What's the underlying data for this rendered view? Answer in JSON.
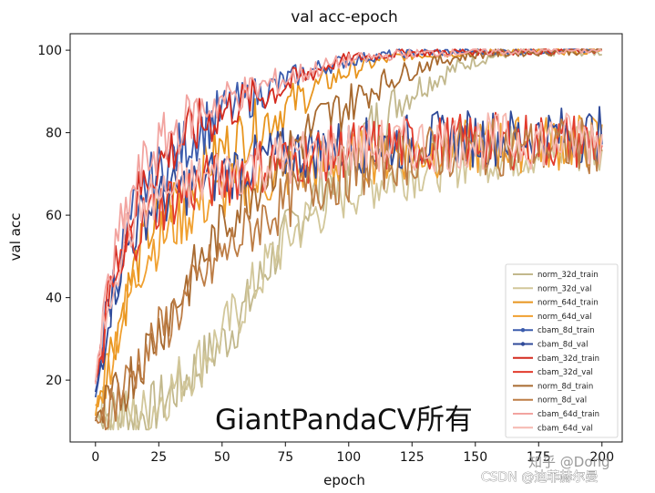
{
  "chart_data": {
    "type": "line",
    "title": "val acc-epoch",
    "xlabel": "epoch",
    "ylabel": "val acc",
    "xlim": [
      -10,
      208
    ],
    "ylim": [
      5,
      104
    ],
    "xticks": [
      0,
      25,
      50,
      75,
      100,
      125,
      150,
      175,
      200
    ],
    "yticks": [
      20,
      40,
      60,
      80,
      100
    ],
    "grid": false,
    "legend_position": "lower-right",
    "series": [
      {
        "name": "norm_32d_train",
        "color": "#c2b88c",
        "marker": false,
        "points": [
          [
            0,
            12
          ],
          [
            10,
            11.5
          ],
          [
            20,
            11.5
          ],
          [
            30,
            17
          ],
          [
            40,
            23
          ],
          [
            50,
            29
          ],
          [
            60,
            38
          ],
          [
            70,
            50
          ],
          [
            80,
            59
          ],
          [
            90,
            68
          ],
          [
            100,
            75
          ],
          [
            110,
            82
          ],
          [
            120,
            88
          ],
          [
            130,
            92
          ],
          [
            140,
            95
          ],
          [
            150,
            97.5
          ],
          [
            160,
            99
          ],
          [
            175,
            99.5
          ],
          [
            200,
            99.5
          ]
        ]
      },
      {
        "name": "norm_32d_val",
        "color": "#d2c79a",
        "marker": false,
        "points": [
          [
            0,
            12
          ],
          [
            10,
            11.5
          ],
          [
            20,
            12
          ],
          [
            30,
            18
          ],
          [
            40,
            24
          ],
          [
            50,
            31
          ],
          [
            60,
            40
          ],
          [
            70,
            50
          ],
          [
            80,
            57
          ],
          [
            90,
            62
          ],
          [
            100,
            66
          ],
          [
            110,
            68
          ],
          [
            120,
            70
          ],
          [
            130,
            72
          ],
          [
            140,
            73
          ],
          [
            150,
            74.5
          ],
          [
            160,
            75
          ],
          [
            175,
            76
          ],
          [
            200,
            76.5
          ]
        ]
      },
      {
        "name": "norm_64d_train",
        "color": "#e8951e",
        "marker": false,
        "points": [
          [
            0,
            13
          ],
          [
            5,
            25
          ],
          [
            10,
            36
          ],
          [
            15,
            46
          ],
          [
            20,
            55
          ],
          [
            30,
            63
          ],
          [
            40,
            70
          ],
          [
            50,
            76
          ],
          [
            60,
            80
          ],
          [
            70,
            84
          ],
          [
            80,
            88
          ],
          [
            90,
            92
          ],
          [
            100,
            95
          ],
          [
            110,
            97
          ],
          [
            120,
            98.5
          ],
          [
            130,
            99
          ],
          [
            150,
            99.5
          ],
          [
            200,
            99.8
          ]
        ]
      },
      {
        "name": "norm_64d_val",
        "color": "#f0a030",
        "marker": false,
        "points": [
          [
            0,
            13
          ],
          [
            5,
            24
          ],
          [
            10,
            34
          ],
          [
            15,
            43
          ],
          [
            20,
            51
          ],
          [
            30,
            57
          ],
          [
            40,
            62
          ],
          [
            50,
            65
          ],
          [
            60,
            67
          ],
          [
            70,
            69
          ],
          [
            80,
            71
          ],
          [
            90,
            72
          ],
          [
            100,
            73.5
          ],
          [
            120,
            75
          ],
          [
            140,
            76
          ],
          [
            160,
            77
          ],
          [
            200,
            78
          ]
        ]
      },
      {
        "name": "cbam_8d_train",
        "color": "#3b5cad",
        "marker": true,
        "points": [
          [
            0,
            16
          ],
          [
            5,
            38
          ],
          [
            10,
            50
          ],
          [
            15,
            60
          ],
          [
            20,
            67
          ],
          [
            30,
            74
          ],
          [
            40,
            80
          ],
          [
            50,
            85
          ],
          [
            60,
            88
          ],
          [
            70,
            91
          ],
          [
            80,
            94
          ],
          [
            90,
            96
          ],
          [
            100,
            97.5
          ],
          [
            110,
            98.5
          ],
          [
            120,
            99.2
          ],
          [
            140,
            99.6
          ],
          [
            200,
            100
          ]
        ]
      },
      {
        "name": "cbam_8d_val",
        "color": "#2f4a99",
        "marker": true,
        "points": [
          [
            0,
            16
          ],
          [
            5,
            37
          ],
          [
            10,
            48
          ],
          [
            15,
            56
          ],
          [
            20,
            61
          ],
          [
            30,
            65
          ],
          [
            40,
            68
          ],
          [
            50,
            70
          ],
          [
            60,
            72
          ],
          [
            70,
            74
          ],
          [
            80,
            75
          ],
          [
            90,
            76
          ],
          [
            100,
            76.5
          ],
          [
            120,
            77.5
          ],
          [
            140,
            78.5
          ],
          [
            160,
            79
          ],
          [
            180,
            79.5
          ],
          [
            200,
            79.5
          ]
        ]
      },
      {
        "name": "cbam_32d_train",
        "color": "#d42a1e",
        "marker": false,
        "points": [
          [
            0,
            18
          ],
          [
            5,
            40
          ],
          [
            10,
            52
          ],
          [
            15,
            62
          ],
          [
            20,
            69
          ],
          [
            30,
            76
          ],
          [
            40,
            81
          ],
          [
            50,
            85
          ],
          [
            60,
            88
          ],
          [
            70,
            90
          ],
          [
            80,
            93
          ],
          [
            90,
            96
          ],
          [
            100,
            98
          ],
          [
            120,
            99.3
          ],
          [
            140,
            99.6
          ],
          [
            200,
            100
          ]
        ]
      },
      {
        "name": "cbam_32d_val",
        "color": "#e23b2c",
        "marker": false,
        "points": [
          [
            0,
            18
          ],
          [
            5,
            38
          ],
          [
            10,
            48
          ],
          [
            15,
            55
          ],
          [
            20,
            60
          ],
          [
            30,
            64
          ],
          [
            40,
            67
          ],
          [
            50,
            69
          ],
          [
            60,
            71
          ],
          [
            70,
            73
          ],
          [
            80,
            74
          ],
          [
            90,
            75
          ],
          [
            100,
            76
          ],
          [
            120,
            77
          ],
          [
            140,
            77.5
          ],
          [
            160,
            78
          ],
          [
            200,
            78
          ]
        ]
      },
      {
        "name": "norm_8d_train",
        "color": "#a86a30",
        "marker": false,
        "points": [
          [
            0,
            10
          ],
          [
            5,
            13
          ],
          [
            10,
            17
          ],
          [
            15,
            22
          ],
          [
            20,
            27
          ],
          [
            30,
            37
          ],
          [
            40,
            47
          ],
          [
            50,
            57
          ],
          [
            60,
            65
          ],
          [
            70,
            72
          ],
          [
            80,
            78
          ],
          [
            90,
            83
          ],
          [
            100,
            87
          ],
          [
            110,
            91
          ],
          [
            120,
            94
          ],
          [
            130,
            96.5
          ],
          [
            140,
            98
          ],
          [
            150,
            99
          ],
          [
            170,
            99.5
          ],
          [
            200,
            99.8
          ]
        ]
      },
      {
        "name": "norm_8d_val",
        "color": "#bd7d45",
        "marker": false,
        "points": [
          [
            0,
            10
          ],
          [
            5,
            13
          ],
          [
            10,
            17
          ],
          [
            15,
            22
          ],
          [
            20,
            27
          ],
          [
            30,
            35
          ],
          [
            40,
            43
          ],
          [
            50,
            50
          ],
          [
            60,
            56
          ],
          [
            70,
            61
          ],
          [
            80,
            65
          ],
          [
            90,
            68
          ],
          [
            100,
            70
          ],
          [
            110,
            72
          ],
          [
            120,
            74
          ],
          [
            140,
            75.5
          ],
          [
            160,
            76.5
          ],
          [
            200,
            77
          ]
        ]
      },
      {
        "name": "cbam_64d_train",
        "color": "#f2a4a0",
        "marker": false,
        "points": [
          [
            0,
            19
          ],
          [
            5,
            43
          ],
          [
            10,
            56
          ],
          [
            15,
            66
          ],
          [
            20,
            73
          ],
          [
            30,
            80
          ],
          [
            40,
            85
          ],
          [
            50,
            88
          ],
          [
            60,
            90
          ],
          [
            70,
            92
          ],
          [
            80,
            94
          ],
          [
            90,
            96
          ],
          [
            100,
            97.5
          ],
          [
            120,
            99
          ],
          [
            140,
            99.5
          ],
          [
            200,
            100
          ]
        ]
      },
      {
        "name": "cbam_64d_val",
        "color": "#f6b8b0",
        "marker": false,
        "points": [
          [
            0,
            19
          ],
          [
            5,
            40
          ],
          [
            10,
            52
          ],
          [
            15,
            59
          ],
          [
            20,
            63
          ],
          [
            30,
            66
          ],
          [
            40,
            68
          ],
          [
            50,
            70
          ],
          [
            60,
            72
          ],
          [
            70,
            73
          ],
          [
            80,
            74
          ],
          [
            90,
            75
          ],
          [
            100,
            76
          ],
          [
            120,
            77
          ],
          [
            140,
            77.5
          ],
          [
            160,
            78
          ],
          [
            200,
            78.5
          ]
        ]
      }
    ]
  },
  "watermarks": {
    "main": "GiantPandaCV所有",
    "zhihu": "知乎 @Dong",
    "csdn": "CSDN @迪菲赫尔曼"
  }
}
